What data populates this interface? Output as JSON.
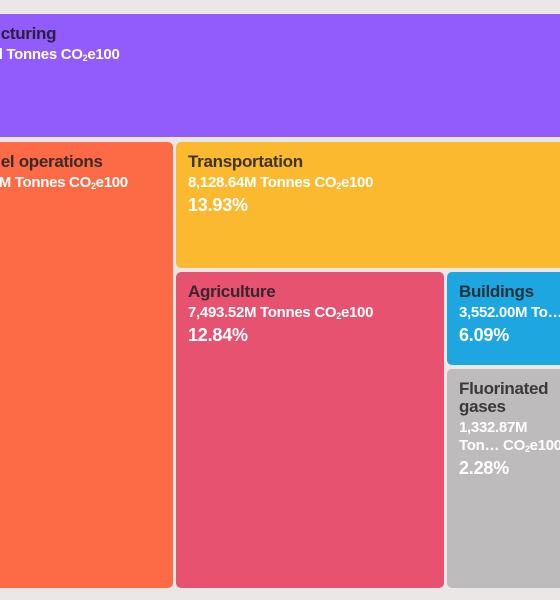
{
  "chart_data": {
    "type": "treemap",
    "unit": "M Tonnes CO2e100",
    "colors": {
      "background": "#ebe7e6",
      "Manufacturing": "#925bfb",
      "Fossil fuel operations": "#fd6b46",
      "Transportation": "#fab92f",
      "Agriculture": "#e6526f",
      "Buildings": "#1ea6e1",
      "Fluorinated gases": "#bdbbbb"
    },
    "items": [
      {
        "name": "…cturing",
        "value_text": "…l Tonnes CO₂e100",
        "percent": "",
        "text_color": "#ffffff",
        "sub_color": "#ffffff"
      },
      {
        "name": "…el operations",
        "value_text": "…M Tonnes CO₂e100",
        "percent": "",
        "text_color": "#3a2a2a",
        "sub_color": "#ffffff"
      },
      {
        "name": "Transportation",
        "value": 8128.64,
        "value_text": "8,128.64M Tonnes CO₂e100",
        "percent": "13.93%",
        "text_color": "#3d3528",
        "sub_color": "#ffffff"
      },
      {
        "name": "Agriculture",
        "value": 7493.52,
        "value_text": "7,493.52M Tonnes CO₂e100",
        "percent": "12.84%",
        "text_color": "#3a2630",
        "sub_color": "#ffffff"
      },
      {
        "name": "Buildings",
        "value": 3552.0,
        "value_text": "3,552.00M To…",
        "percent": "6.09%",
        "text_color": "#27323a",
        "sub_color": "#ffffff"
      },
      {
        "name": "Fluorinated gases",
        "value": 1332.87,
        "value_text": "1,332.87M Ton… CO₂e100",
        "percent": "2.28%",
        "text_color": "#3a3a3a",
        "sub_color": "#ffffff"
      }
    ]
  }
}
